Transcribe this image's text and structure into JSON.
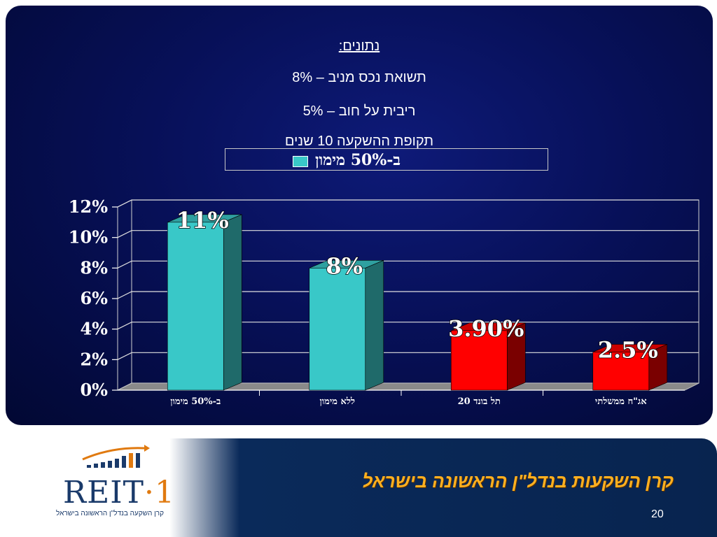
{
  "info": {
    "heading": "נתונים:",
    "line1": "תשואת נכס מניב – 8%",
    "line2": "ריבית על חוב      –   5%",
    "line3": "תקופת ההשקעה 10 שנים"
  },
  "legend": {
    "label": "ב-50% מימון"
  },
  "footer": {
    "title": "קרן השקעות בנדל\"ן הראשונה בישראל",
    "page_number": "20",
    "logo_text_main": "REIT",
    "logo_text_num": "·1",
    "logo_tagline": "קרן השקעה בנדל\"ן הראשונה בישראל"
  },
  "colors": {
    "accent_cyan": "#39c8c8",
    "accent_red": "#ff0000",
    "footer_gold": "#ffb020"
  },
  "chart_data": {
    "type": "bar",
    "categories": [
      "ב-50% מימון",
      "ללא מימון",
      "תל בונד 20",
      "אג\"ח ממשלתי"
    ],
    "values": [
      11,
      8,
      3.9,
      2.5
    ],
    "data_labels": [
      "11%",
      "8%",
      "3.90%",
      "2.5%"
    ],
    "bar_colors": [
      "#39c8c8",
      "#39c8c8",
      "#ff0000",
      "#ff0000"
    ],
    "y_ticks": [
      "0%",
      "2%",
      "4%",
      "6%",
      "8%",
      "10%",
      "12%"
    ],
    "ylim": [
      0,
      12
    ],
    "grid": true,
    "legend_position": "top"
  }
}
